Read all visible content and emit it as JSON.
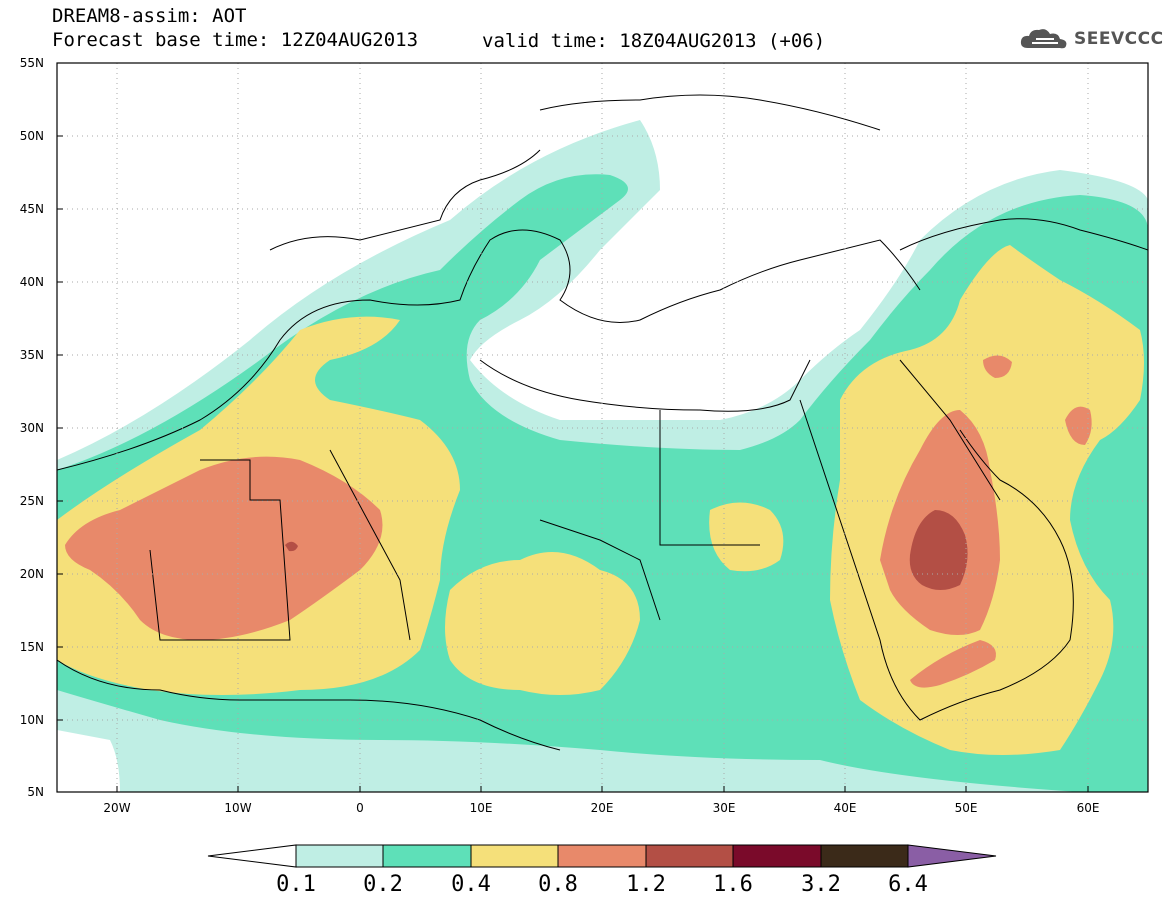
{
  "title": {
    "line1": "DREAM8-assim: AOT",
    "line2": "Forecast base time: 12Z04AUG2013",
    "valid": "valid time: 18Z04AUG2013 (+06)"
  },
  "logo": {
    "text": "SEEVCCC",
    "icon": "cloud-logo-icon"
  },
  "map": {
    "lon_range": [
      -25,
      65
    ],
    "lat_range": [
      5,
      55
    ],
    "grid": true,
    "lat_labels": [
      "55N",
      "50N",
      "45N",
      "40N",
      "35N",
      "30N",
      "25N",
      "20N",
      "15N",
      "10N",
      "5N"
    ],
    "lon_labels": [
      "20W",
      "10W",
      "0",
      "10E",
      "20E",
      "30E",
      "40E",
      "50E",
      "60E"
    ]
  },
  "colorbar": {
    "labels": [
      "0.1",
      "0.2",
      "0.4",
      "0.8",
      "1.2",
      "1.6",
      "3.2",
      "6.4"
    ],
    "colors": [
      "#ffffff",
      "#bfeee4",
      "#5ee0b8",
      "#f5e07a",
      "#e8896a",
      "#b34f45",
      "#7a0a2a",
      "#3b2a19",
      "#8a5ea5"
    ]
  }
}
